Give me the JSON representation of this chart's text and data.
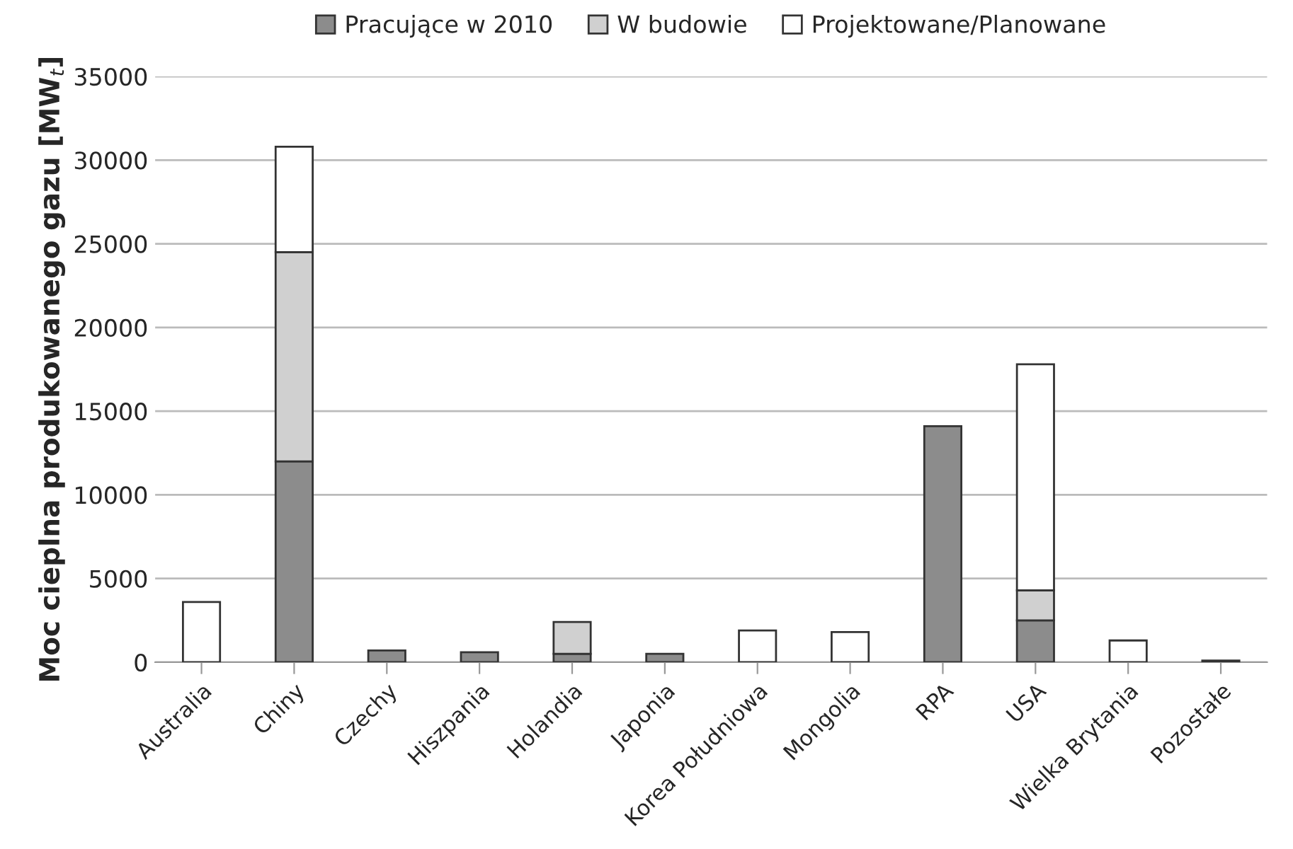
{
  "chart_data": {
    "type": "bar",
    "stacked": true,
    "ylabel": "Moc cieplna produkowanego gazu [MW$_{t}$]",
    "categories": [
      "Australia",
      "Chiny",
      "Czechy",
      "Hiszpania",
      "Holandia",
      "Japonia",
      "Korea Południowa",
      "Mongolia",
      "RPA",
      "USA",
      "Wielka Brytania",
      "Pozostałe"
    ],
    "series": [
      {
        "name": "Pracujące w 2010",
        "color": "#8c8c8c",
        "values": [
          0,
          12000,
          700,
          600,
          500,
          500,
          0,
          0,
          14100,
          2500,
          0,
          100
        ]
      },
      {
        "name": "W budowie",
        "color": "#d0d0d0",
        "values": [
          0,
          12500,
          0,
          0,
          1900,
          0,
          0,
          0,
          0,
          1800,
          0,
          0
        ]
      },
      {
        "name": "Projektowane/Planowane",
        "color": "#ffffff",
        "values": [
          3600,
          6300,
          0,
          0,
          0,
          0,
          1900,
          1800,
          0,
          13500,
          1300,
          0
        ]
      }
    ],
    "ylim": [
      0,
      35000
    ],
    "yticks": [
      0,
      5000,
      10000,
      15000,
      20000,
      25000,
      30000,
      35000
    ],
    "grid": "y",
    "legend": "top"
  }
}
